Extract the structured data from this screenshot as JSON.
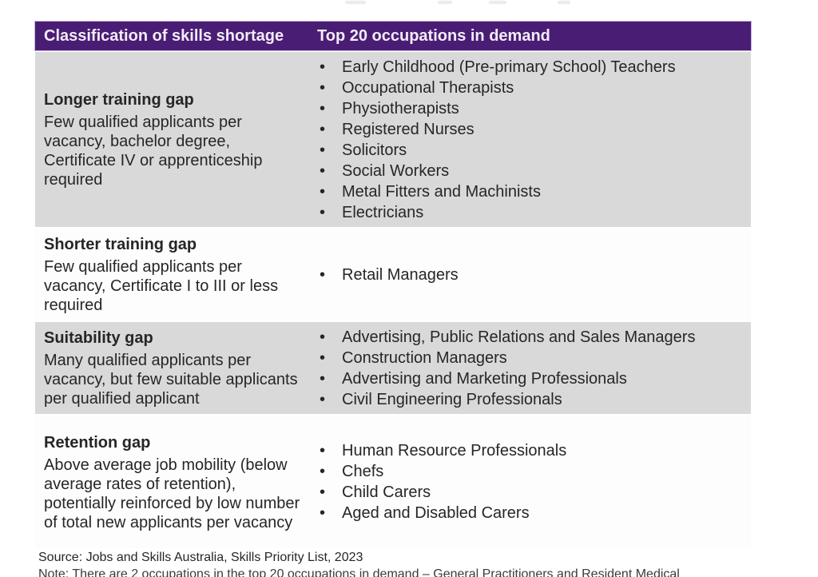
{
  "table": {
    "header": {
      "col1": "Classification of skills shortage",
      "col2": "Top 20 occupations in demand"
    },
    "rows": [
      {
        "title": "Longer training gap",
        "description": "Few qualified applicants per vacancy, bachelor degree, Certificate IV or apprenticeship required",
        "occupations": [
          "Early Childhood (Pre-primary School) Teachers",
          "Occupational Therapists",
          "Physiotherapists",
          "Registered Nurses",
          "Solicitors",
          "Social Workers",
          "Metal Fitters and Machinists",
          "Electricians"
        ],
        "shaded": true
      },
      {
        "title": "Shorter training gap",
        "description": "Few qualified applicants per vacancy, Certificate I to III or less required",
        "occupations": [
          "Retail Managers"
        ],
        "shaded": false
      },
      {
        "title": "Suitability gap",
        "description": "Many qualified applicants per vacancy, but few suitable applicants per qualified applicant",
        "occupations": [
          "Advertising, Public Relations and Sales Managers",
          "Construction Managers",
          "Advertising and Marketing Professionals",
          "Civil Engineering Professionals"
        ],
        "shaded": true
      },
      {
        "title": "Retention gap",
        "description": "Above average job mobility (below average rates of retention), potentially reinforced by low number of total new applicants per vacancy",
        "occupations": [
          "Human Resource Professionals",
          "Chefs",
          "Child Carers",
          "Aged and Disabled Carers"
        ],
        "shaded": false
      }
    ]
  },
  "footer": {
    "source": "Source: Jobs and Skills Australia, Skills Priority List, 2023",
    "note_clipped": "Note: There are 2 occupations in the top 20 occupations in demand – General Practitioners and Resident Medical"
  },
  "colors": {
    "header_bg": "#4a1d74",
    "header_text": "#f2ecf8",
    "shaded_row_bg": "#d9d9d9",
    "plain_row_bg": "#fdfdfd",
    "body_text": "#262626"
  },
  "bullet_glyph": "•"
}
